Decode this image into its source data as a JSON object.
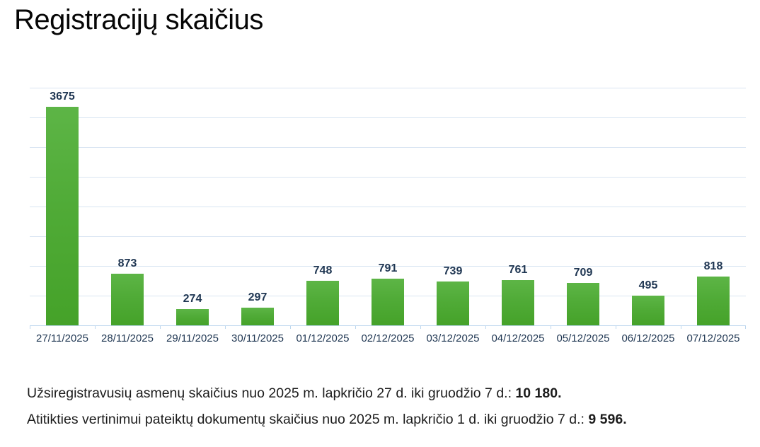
{
  "title": "Registracijų skaičius",
  "chart_data": {
    "type": "bar",
    "title": "Registracijų skaičius",
    "categories": [
      "27/11/2025",
      "28/11/2025",
      "29/11/2025",
      "30/11/2025",
      "01/12/2025",
      "02/12/2025",
      "03/12/2025",
      "04/12/2025",
      "05/12/2025",
      "06/12/2025",
      "07/12/2025"
    ],
    "values": [
      3675,
      873,
      274,
      297,
      748,
      791,
      739,
      761,
      709,
      495,
      818
    ],
    "xlabel": "",
    "ylabel": "",
    "ylim": [
      0,
      4000
    ],
    "gridline_step": 500,
    "grid": true,
    "legend": false,
    "data_labels": true,
    "bar_color_top": "#5db546",
    "bar_color_bottom": "#45a229",
    "label_color": "#1f3652",
    "gridline_color": "#d9e5f2",
    "axis_color": "#bdd7ee"
  },
  "summary": {
    "line1_text": "Užsiregistravusių asmenų skaičius nuo 2025 m. lapkričio 27 d. iki gruodžio 7 d.:",
    "line1_value": "10 180.",
    "line2_text": "Atitikties vertinimui pateiktų dokumentų skaičius nuo 2025 m. lapkričio 1 d. iki gruodžio 7 d.:",
    "line2_value": "9 596."
  }
}
